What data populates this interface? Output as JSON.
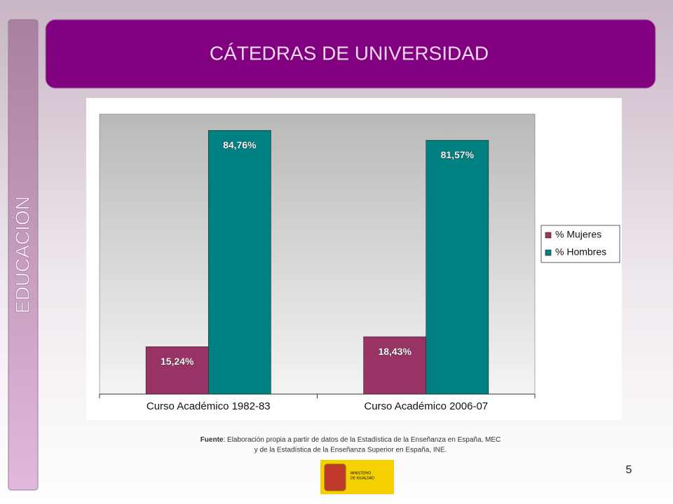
{
  "slide": {
    "title": "CÁTEDRAS DE UNIVERSIDAD",
    "side_label": "EDUCACIÓN",
    "source_label": "Fuente",
    "source_lines": [
      ": Elaboración propia a partir de datos de la Estadística de la Enseñanza en España, MEC",
      "y de la Estadística de la Enseñanza Superior en España, INE."
    ],
    "page_number": "5",
    "logo_lines": [
      "MINISTERIO",
      "DE IGUALDAD"
    ]
  },
  "chart_data": {
    "type": "bar",
    "categories": [
      "Curso Académico 1982-83",
      "Curso Académico 2006-07"
    ],
    "series": [
      {
        "name": "% Mujeres",
        "color": "#993366",
        "values": [
          15.24,
          18.43
        ],
        "value_labels": [
          "15,24%",
          "18,43%"
        ]
      },
      {
        "name": "% Hombres",
        "color": "#008080",
        "values": [
          84.76,
          81.57
        ],
        "value_labels": [
          "84,76%",
          "81,57%"
        ]
      }
    ],
    "ylim": [
      0,
      90
    ],
    "legend": "right"
  }
}
